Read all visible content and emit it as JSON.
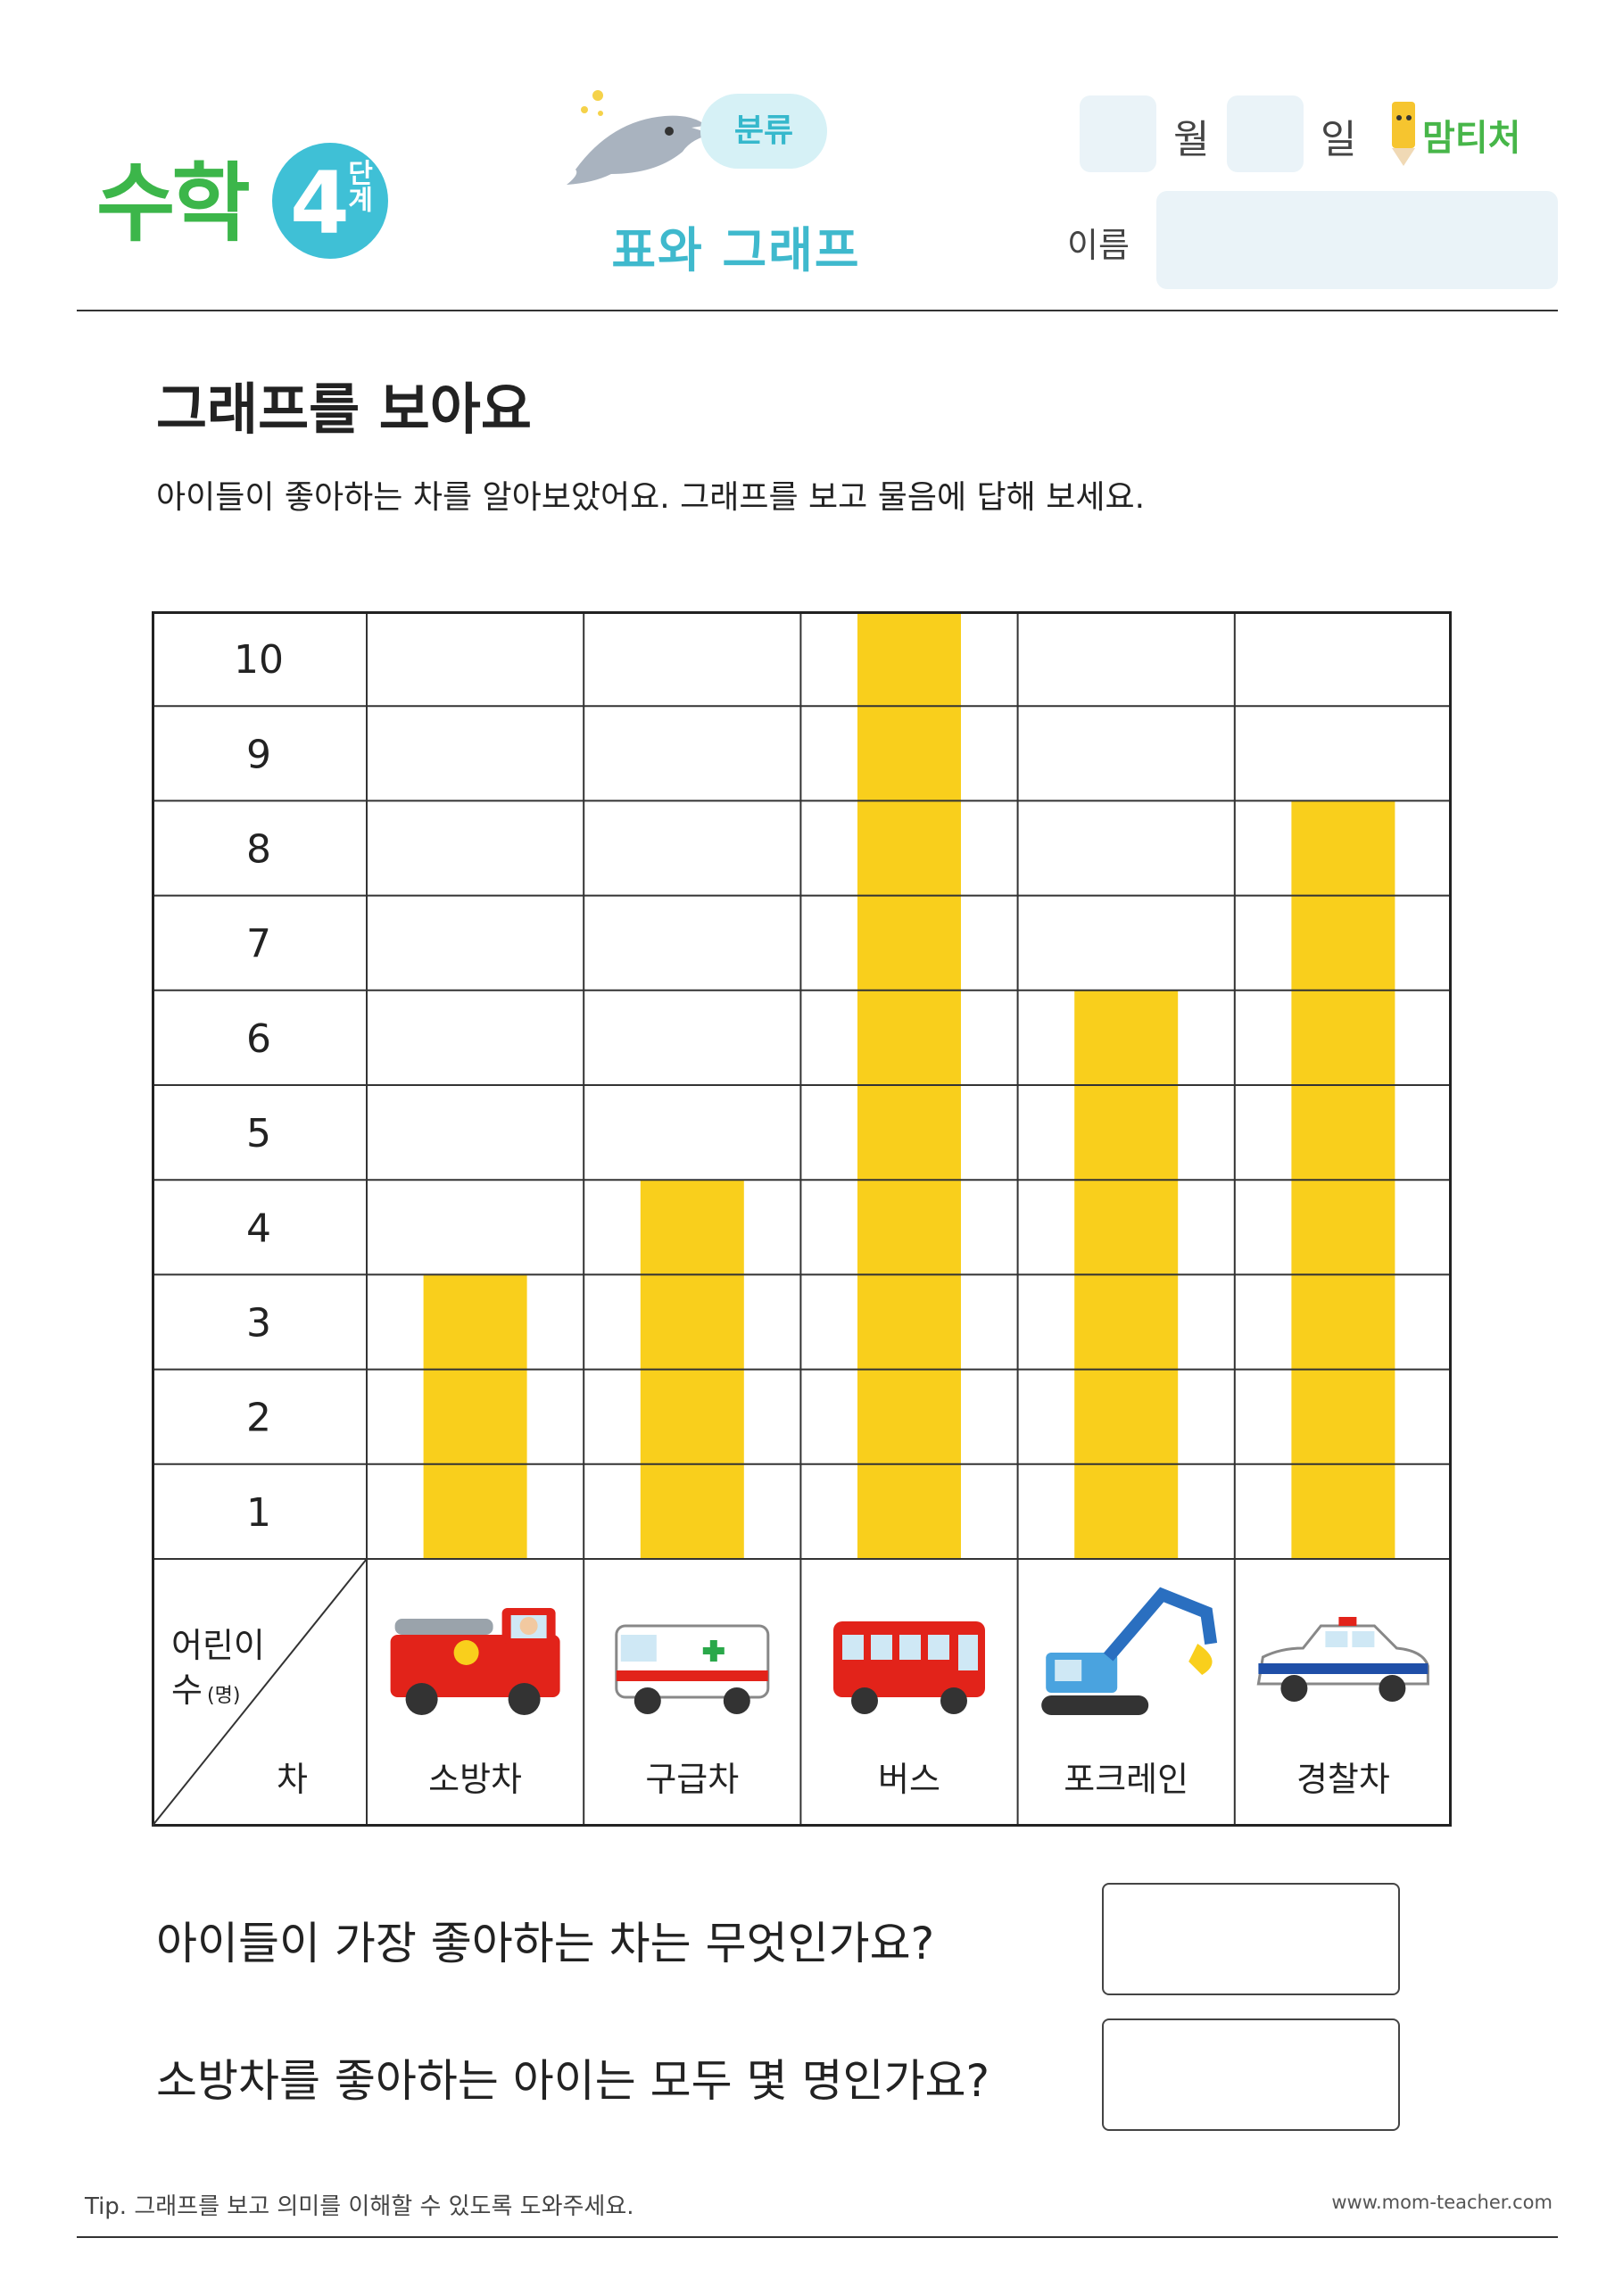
{
  "header": {
    "logo_text": "수학",
    "level_number": "4",
    "level_word": "단계",
    "category_label": "분류",
    "topic_title": "표와 그래프",
    "month_label": "월",
    "day_label": "일",
    "brand_text": "맘티처",
    "name_label": "이름"
  },
  "page": {
    "heading": "그래프를 보아요",
    "instruction": "아이들이 좋아하는 차를 알아보았어요. 그래프를 보고 물음에 답해 보세요."
  },
  "chart_data": {
    "type": "bar",
    "categories": [
      "소방차",
      "구급차",
      "버스",
      "포크레인",
      "경찰차"
    ],
    "values": [
      3,
      4,
      10,
      6,
      8
    ],
    "y_ticks": [
      "1",
      "2",
      "3",
      "4",
      "5",
      "6",
      "7",
      "8",
      "9",
      "10"
    ],
    "ylim": [
      0,
      10
    ],
    "corner_top_label_line1": "어린이",
    "corner_top_label_line2": "수",
    "corner_top_unit": "(명)",
    "corner_bottom_label": "차",
    "bar_color": "#f9cf1c",
    "vehicle_icons": [
      "fire-truck-icon",
      "ambulance-icon",
      "bus-icon",
      "excavator-icon",
      "police-car-icon"
    ]
  },
  "questions": [
    {
      "text": "아이들이 가장 좋아하는 차는 무엇인가요?"
    },
    {
      "text": "소방차를 좋아하는 아이는 모두 몇 명인가요?"
    }
  ],
  "footer": {
    "tip": "Tip. 그래프를 보고 의미를 이해할 수 있도록 도와주세요.",
    "website": "www.mom-teacher.com"
  },
  "colors": {
    "accent": "#3fb9cd",
    "logo_green": "#3cb64a",
    "field_bg": "#eaf3f8"
  }
}
